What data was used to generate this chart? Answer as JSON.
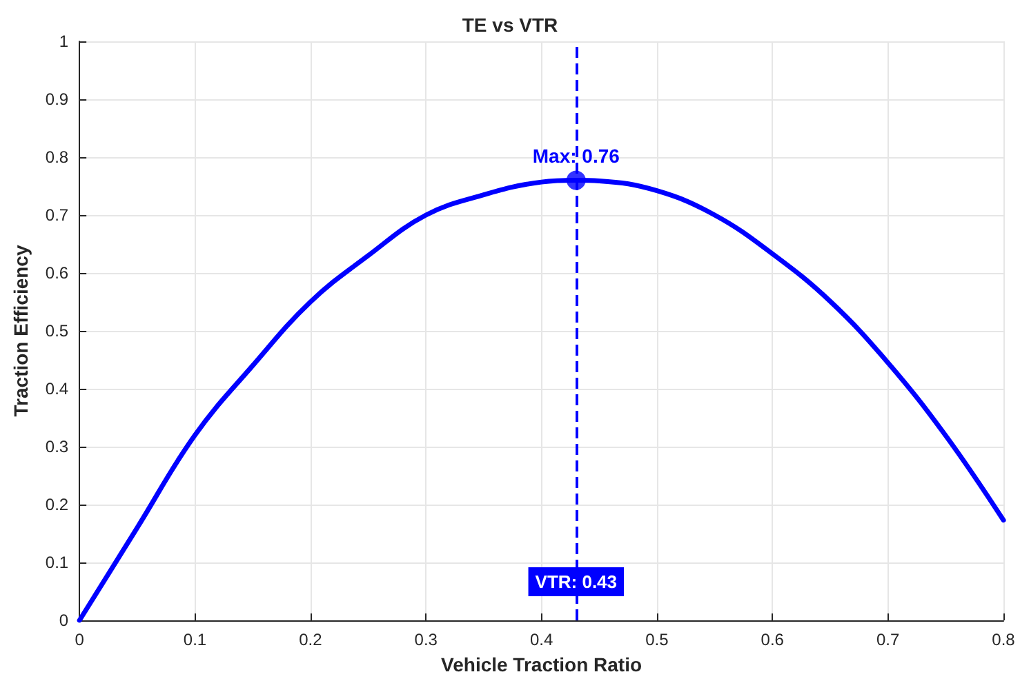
{
  "chart_data": {
    "type": "line",
    "title": "TE vs VTR",
    "xlabel": "Vehicle Traction Ratio",
    "ylabel": "Traction Efficiency",
    "xlim": [
      0,
      0.8
    ],
    "ylim": [
      0,
      1
    ],
    "xticks": [
      0,
      0.1,
      0.2,
      0.3,
      0.4,
      0.5,
      0.6,
      0.7,
      0.8
    ],
    "yticks": [
      0,
      0.1,
      0.2,
      0.3,
      0.4,
      0.5,
      0.6,
      0.7,
      0.8,
      0.9,
      1
    ],
    "grid": true,
    "marker": "none",
    "line_style": "solid",
    "series": [
      {
        "color": "#0000ff",
        "x": [
          0,
          0.05,
          0.1,
          0.15,
          0.2,
          0.25,
          0.3,
          0.35,
          0.4,
          0.43,
          0.45,
          0.5,
          0.55,
          0.6,
          0.65,
          0.7,
          0.75,
          0.8
        ],
        "values": [
          0,
          0.16,
          0.32,
          0.44,
          0.55,
          0.63,
          0.7,
          0.735,
          0.757,
          0.76,
          0.759,
          0.742,
          0.7,
          0.633,
          0.551,
          0.445,
          0.319,
          0.173
        ]
      },
      {
        "type": "scatter",
        "color": "#0000ff",
        "marker": "circle",
        "x": [
          0.43
        ],
        "values": [
          0.76
        ]
      }
    ],
    "ref_lines": [
      {
        "axis": "x",
        "value": 0.43,
        "label": "VTR: 0.43",
        "color": "#0000ff",
        "line_style": "dashed"
      }
    ],
    "annotations": [
      {
        "text": "Max: 0.76",
        "x": 0.43,
        "y": 0.76
      }
    ]
  }
}
